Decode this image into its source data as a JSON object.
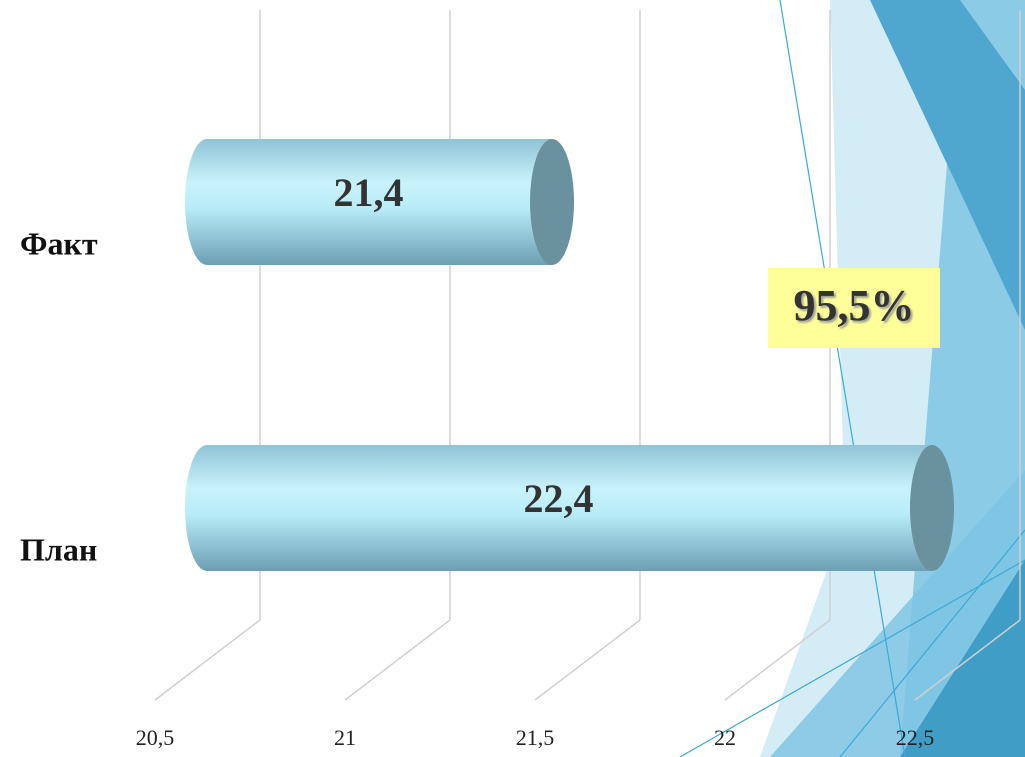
{
  "chart_data": {
    "type": "bar",
    "orientation": "horizontal",
    "categories": [
      "Факт",
      "План"
    ],
    "values": [
      21.4,
      22.4
    ],
    "value_labels": [
      "21,4",
      "22,4"
    ],
    "xlim": [
      20.5,
      22.5
    ],
    "xticks": [
      {
        "value": 20.5,
        "label": "20,5"
      },
      21,
      {
        "value": 21.5,
        "label": "21,5"
      },
      22,
      {
        "value": 22.5,
        "label": "22,5"
      }
    ],
    "grid": true,
    "annotation": "95,5%"
  }
}
